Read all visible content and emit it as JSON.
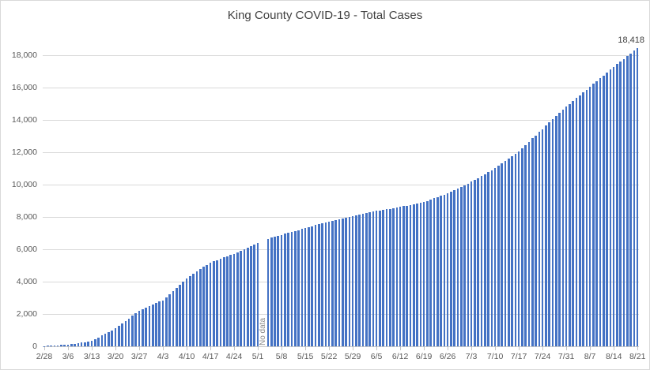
{
  "chart_data": {
    "type": "bar",
    "title": "King County COVID-19 - Total Cases",
    "xlabel": "",
    "ylabel": "",
    "ylim": [
      0,
      18000
    ],
    "grid": true,
    "legend": "none",
    "bar_color": "#4472c4",
    "start_date": "2/28",
    "end_date": "8/21",
    "x_tick_labels": [
      "2/28",
      "3/6",
      "3/13",
      "3/20",
      "3/27",
      "4/3",
      "4/10",
      "4/17",
      "4/24",
      "5/1",
      "5/8",
      "5/15",
      "5/22",
      "5/29",
      "6/5",
      "6/12",
      "6/19",
      "6/26",
      "7/3",
      "7/10",
      "7/17",
      "7/24",
      "7/31",
      "8/7",
      "8/14",
      "8/21"
    ],
    "x_tick_interval_days": 7,
    "y_ticks": [
      0,
      2000,
      4000,
      6000,
      8000,
      10000,
      12000,
      14000,
      16000,
      18000
    ],
    "y_tick_labels": [
      "0",
      "2,000",
      "4,000",
      "6,000",
      "8,000",
      "10,000",
      "12,000",
      "14,000",
      "16,000",
      "18,000"
    ],
    "last_point_label": "18,418",
    "no_data": {
      "text": "No data",
      "indices": [
        64,
        65
      ],
      "dates": [
        "5/2",
        "5/3"
      ]
    },
    "values": [
      15,
      25,
      35,
      48,
      60,
      75,
      90,
      110,
      140,
      170,
      200,
      230,
      265,
      295,
      330,
      440,
      550,
      660,
      770,
      880,
      990,
      1100,
      1260,
      1410,
      1570,
      1730,
      1880,
      2040,
      2200,
      2290,
      2380,
      2480,
      2570,
      2660,
      2760,
      2850,
      3040,
      3240,
      3430,
      3620,
      3810,
      4010,
      4200,
      4340,
      4480,
      4620,
      4760,
      4900,
      5040,
      5180,
      5260,
      5330,
      5410,
      5490,
      5560,
      5640,
      5720,
      5820,
      5910,
      6010,
      6110,
      6200,
      6300,
      6400,
      null,
      null,
      6650,
      6710,
      6770,
      6830,
      6890,
      6950,
      7010,
      7070,
      7120,
      7180,
      7240,
      7300,
      7360,
      7420,
      7480,
      7530,
      7590,
      7650,
      7710,
      7760,
      7810,
      7850,
      7900,
      7950,
      7990,
      8040,
      8090,
      8130,
      8180,
      8220,
      8270,
      8310,
      8360,
      8400,
      8430,
      8470,
      8500,
      8540,
      8570,
      8610,
      8650,
      8690,
      8730,
      8780,
      8820,
      8860,
      8900,
      8980,
      9060,
      9140,
      9210,
      9290,
      9370,
      9450,
      9550,
      9650,
      9750,
      9860,
      9960,
      10060,
      10160,
      10280,
      10400,
      10520,
      10640,
      10760,
      10880,
      11000,
      11150,
      11300,
      11450,
      11600,
      11750,
      11900,
      12050,
      12250,
      12450,
      12640,
      12840,
      13030,
      13230,
      13420,
      13620,
      13820,
      14020,
      14210,
      14410,
      14610,
      14810,
      14980,
      15160,
      15330,
      15510,
      15680,
      15860,
      16030,
      16210,
      16380,
      16560,
      16730,
      16910,
      17080,
      17260,
      17430,
      17590,
      17760,
      17920,
      18090,
      18250,
      18418
    ]
  },
  "colors": {
    "bar": "#4472c4",
    "gridline": "#d9d9d9",
    "axis": "#c6c6c6",
    "tick_label": "#595959",
    "title": "#404040",
    "annotation": "#8a8a8a",
    "data_label": "#404040",
    "background": "#ffffff",
    "border": "#d9d9d9"
  }
}
